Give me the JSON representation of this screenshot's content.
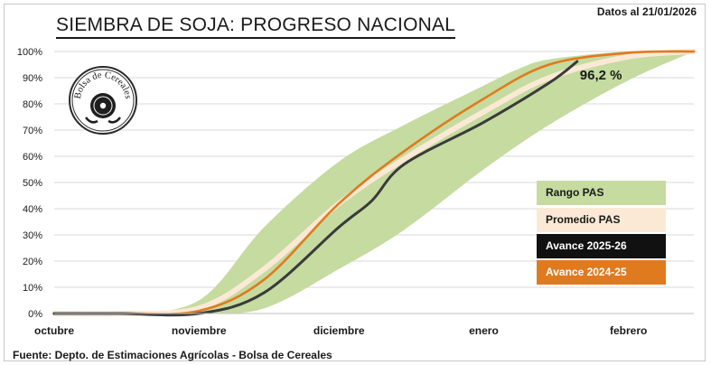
{
  "header": {
    "title": "SIEMBRA DE SOJA: PROGRESO NACIONAL",
    "date_label": "Datos al 21/01/2026"
  },
  "footer": {
    "source": "Fuente: Depto. de Estimaciones Agrícolas - Bolsa de Cereales"
  },
  "logo": {
    "text": "Bolsa de Cereales"
  },
  "colors": {
    "range": "#c5dba0",
    "average": "#fbe9d5",
    "current": "#3a3a3a",
    "previous": "#e07a1f",
    "grid": "#d9d9d9"
  },
  "chart_data": {
    "type": "area",
    "x_ticks": [
      "octubre",
      "noviembre",
      "diciembre",
      "enero",
      "febrero"
    ],
    "y_ticks": [
      "0%",
      "10%",
      "20%",
      "30%",
      "40%",
      "50%",
      "60%",
      "70%",
      "80%",
      "90%",
      "100%"
    ],
    "ylim": [
      0,
      100
    ],
    "xlim": [
      "01/10",
      "15/02"
    ],
    "grid": true,
    "legend": [
      {
        "name": "Rango PAS",
        "color": "#c5dba0",
        "text_color": "#1a1a1a"
      },
      {
        "name": "Promedio PAS",
        "color": "#fbe9d5",
        "text_color": "#1a1a1a"
      },
      {
        "name": "Avance 2025-26",
        "color": "#111111",
        "text_color": "#ffffff"
      },
      {
        "name": "Avance 2024-25",
        "color": "#e07a1f",
        "text_color": "#ffffff"
      }
    ],
    "annotation": "96,2 %",
    "range_upper": [
      {
        "x": "01/10",
        "y": 0
      },
      {
        "x": "15/10",
        "y": 0
      },
      {
        "x": "01/11",
        "y": 5
      },
      {
        "x": "15/11",
        "y": 33
      },
      {
        "x": "01/12",
        "y": 58
      },
      {
        "x": "15/12",
        "y": 72
      },
      {
        "x": "01/01",
        "y": 87
      },
      {
        "x": "08/01",
        "y": 93
      },
      {
        "x": "15/01",
        "y": 97
      },
      {
        "x": "01/02",
        "y": 100
      },
      {
        "x": "15/02",
        "y": 100
      }
    ],
    "range_lower": [
      {
        "x": "01/10",
        "y": 0
      },
      {
        "x": "15/10",
        "y": 0
      },
      {
        "x": "01/11",
        "y": 0
      },
      {
        "x": "15/11",
        "y": 2
      },
      {
        "x": "01/12",
        "y": 17
      },
      {
        "x": "15/12",
        "y": 32
      },
      {
        "x": "01/01",
        "y": 55
      },
      {
        "x": "15/01",
        "y": 72
      },
      {
        "x": "01/02",
        "y": 89
      },
      {
        "x": "15/02",
        "y": 100
      }
    ],
    "series": [
      {
        "name": "Promedio PAS",
        "points": [
          {
            "x": "01/10",
            "y": 0
          },
          {
            "x": "15/10",
            "y": 0
          },
          {
            "x": "01/11",
            "y": 2
          },
          {
            "x": "15/11",
            "y": 17
          },
          {
            "x": "01/12",
            "y": 42
          },
          {
            "x": "15/12",
            "y": 59
          },
          {
            "x": "01/01",
            "y": 77
          },
          {
            "x": "15/01",
            "y": 90
          },
          {
            "x": "01/02",
            "y": 98
          },
          {
            "x": "15/02",
            "y": 100
          }
        ]
      },
      {
        "name": "Avance 2025-26",
        "points": [
          {
            "x": "01/10",
            "y": 0
          },
          {
            "x": "15/10",
            "y": 0
          },
          {
            "x": "01/11",
            "y": 0
          },
          {
            "x": "15/11",
            "y": 8
          },
          {
            "x": "01/12",
            "y": 33
          },
          {
            "x": "08/12",
            "y": 43
          },
          {
            "x": "15/12",
            "y": 57
          },
          {
            "x": "01/01",
            "y": 73
          },
          {
            "x": "15/01",
            "y": 88
          },
          {
            "x": "21/01",
            "y": 96.2
          }
        ]
      },
      {
        "name": "Avance 2024-25",
        "points": [
          {
            "x": "01/10",
            "y": 0
          },
          {
            "x": "15/10",
            "y": 0
          },
          {
            "x": "01/11",
            "y": 1
          },
          {
            "x": "15/11",
            "y": 13
          },
          {
            "x": "01/12",
            "y": 42
          },
          {
            "x": "15/12",
            "y": 62
          },
          {
            "x": "01/01",
            "y": 82
          },
          {
            "x": "15/01",
            "y": 95
          },
          {
            "x": "01/02",
            "y": 99.5
          },
          {
            "x": "15/02",
            "y": 100
          }
        ]
      }
    ]
  }
}
